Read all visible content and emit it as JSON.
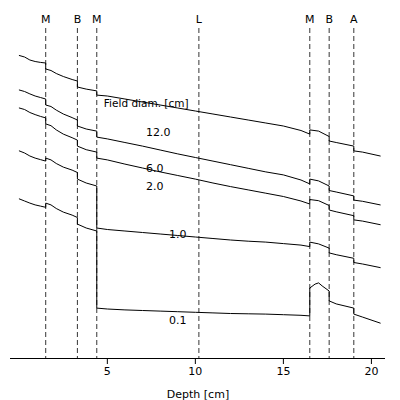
{
  "chart_data": {
    "type": "line",
    "xlabel": "Depth [cm]",
    "xlim": [
      -0.5,
      20.8
    ],
    "ylim": [
      -0.02,
      1.08
    ],
    "xticks": [
      5,
      10,
      15,
      20
    ],
    "yticks": [],
    "tick_labels": "x",
    "grid": false,
    "color": "#000000",
    "vlines": [
      {
        "x": 1.5,
        "label": "M"
      },
      {
        "x": 3.3,
        "label": "B"
      },
      {
        "x": 4.4,
        "label": "M"
      },
      {
        "x": 10.2,
        "label": "L"
      },
      {
        "x": 16.5,
        "label": "M"
      },
      {
        "x": 17.6,
        "label": "B"
      },
      {
        "x": 19.0,
        "label": "A"
      }
    ],
    "annotations": [
      {
        "text": "Field diam. [cm]",
        "x": 4.8,
        "y": 0.83
      }
    ],
    "series": [
      {
        "name": "12.0",
        "label_x": 7.2,
        "label_y": 0.735,
        "x": [
          0.0,
          0.3,
          0.6,
          0.9,
          1.2,
          1.5,
          1.5,
          1.8,
          2.1,
          2.5,
          3.0,
          3.3,
          3.3,
          3.8,
          4.4,
          4.4,
          5.0,
          6.0,
          7.0,
          8.0,
          9.0,
          10.0,
          11.0,
          12.0,
          13.0,
          14.0,
          15.0,
          16.0,
          16.5,
          16.5,
          17.0,
          17.6,
          17.6,
          18.0,
          19.0,
          19.0,
          19.5,
          20.5
        ],
        "values": [
          0.99,
          0.985,
          0.975,
          0.97,
          0.967,
          0.965,
          0.945,
          0.94,
          0.93,
          0.92,
          0.91,
          0.905,
          0.885,
          0.878,
          0.872,
          0.858,
          0.855,
          0.845,
          0.835,
          0.825,
          0.815,
          0.805,
          0.795,
          0.785,
          0.775,
          0.765,
          0.755,
          0.74,
          0.728,
          0.742,
          0.738,
          0.72,
          0.705,
          0.7,
          0.688,
          0.672,
          0.668,
          0.655
        ]
      },
      {
        "name": "6.0",
        "label_x": 7.2,
        "label_y": 0.615,
        "x": [
          0.0,
          0.3,
          0.6,
          0.9,
          1.2,
          1.5,
          1.5,
          1.8,
          2.1,
          2.5,
          3.0,
          3.3,
          3.3,
          3.8,
          4.4,
          4.4,
          5.0,
          6.0,
          7.0,
          8.0,
          9.0,
          10.0,
          11.0,
          12.0,
          13.0,
          14.0,
          15.0,
          16.0,
          16.5,
          16.5,
          17.0,
          17.6,
          17.6,
          18.0,
          19.0,
          19.0,
          19.5,
          20.5
        ],
        "values": [
          0.875,
          0.87,
          0.862,
          0.855,
          0.85,
          0.845,
          0.825,
          0.82,
          0.808,
          0.795,
          0.783,
          0.775,
          0.755,
          0.745,
          0.738,
          0.718,
          0.712,
          0.7,
          0.688,
          0.675,
          0.662,
          0.65,
          0.638,
          0.626,
          0.614,
          0.602,
          0.592,
          0.575,
          0.562,
          0.578,
          0.572,
          0.555,
          0.54,
          0.535,
          0.522,
          0.508,
          0.504,
          0.492
        ]
      },
      {
        "name": "2.0",
        "label_x": 7.2,
        "label_y": 0.552,
        "x": [
          0.0,
          0.3,
          0.6,
          0.9,
          1.2,
          1.5,
          1.5,
          1.8,
          2.1,
          2.5,
          3.0,
          3.3,
          3.3,
          3.8,
          4.4,
          4.4,
          5.0,
          6.0,
          7.0,
          8.0,
          9.0,
          10.0,
          11.0,
          12.0,
          13.0,
          14.0,
          15.0,
          16.0,
          16.5,
          16.5,
          17.0,
          17.6,
          17.6,
          18.0,
          19.0,
          19.0,
          19.5,
          20.5
        ],
        "values": [
          0.815,
          0.81,
          0.8,
          0.793,
          0.787,
          0.782,
          0.762,
          0.756,
          0.742,
          0.728,
          0.716,
          0.708,
          0.688,
          0.676,
          0.668,
          0.648,
          0.642,
          0.628,
          0.615,
          0.602,
          0.59,
          0.578,
          0.565,
          0.553,
          0.542,
          0.531,
          0.52,
          0.505,
          0.495,
          0.51,
          0.506,
          0.49,
          0.475,
          0.469,
          0.456,
          0.442,
          0.438,
          0.426
        ]
      },
      {
        "name": "1.0",
        "label_x": 8.5,
        "label_y": 0.395,
        "x": [
          0.0,
          0.3,
          0.6,
          0.9,
          1.2,
          1.5,
          1.5,
          1.8,
          2.1,
          2.5,
          3.0,
          3.3,
          3.3,
          3.8,
          4.4,
          4.4,
          5.0,
          6.0,
          7.0,
          8.0,
          9.0,
          10.0,
          11.0,
          12.0,
          13.0,
          14.0,
          15.0,
          16.0,
          16.5,
          16.5,
          17.0,
          17.6,
          17.6,
          18.0,
          19.0,
          19.0,
          19.5,
          20.5
        ],
        "values": [
          0.672,
          0.665,
          0.655,
          0.648,
          0.643,
          0.638,
          0.648,
          0.642,
          0.63,
          0.618,
          0.608,
          0.6,
          0.578,
          0.565,
          0.555,
          0.415,
          0.41,
          0.405,
          0.4,
          0.395,
          0.39,
          0.385,
          0.38,
          0.375,
          0.371,
          0.368,
          0.363,
          0.358,
          0.353,
          0.368,
          0.362,
          0.348,
          0.332,
          0.326,
          0.314,
          0.3,
          0.295,
          0.283
        ]
      },
      {
        "name": "0.1",
        "label_x": 8.5,
        "label_y": 0.108,
        "x": [
          0.0,
          0.3,
          0.6,
          0.9,
          1.2,
          1.5,
          1.5,
          1.8,
          2.1,
          2.5,
          3.0,
          3.3,
          3.3,
          3.8,
          4.4,
          4.4,
          5.0,
          6.0,
          7.0,
          8.0,
          9.0,
          10.0,
          11.0,
          12.0,
          13.0,
          14.0,
          15.0,
          16.0,
          16.5,
          16.5,
          16.8,
          17.0,
          17.2,
          17.6,
          17.6,
          18.0,
          19.0,
          19.0,
          19.5,
          20.5
        ],
        "values": [
          0.512,
          0.505,
          0.498,
          0.492,
          0.488,
          0.484,
          0.498,
          0.492,
          0.48,
          0.468,
          0.458,
          0.45,
          0.428,
          0.415,
          0.405,
          0.148,
          0.145,
          0.142,
          0.14,
          0.138,
          0.136,
          0.134,
          0.132,
          0.13,
          0.129,
          0.128,
          0.126,
          0.124,
          0.122,
          0.215,
          0.228,
          0.232,
          0.222,
          0.205,
          0.172,
          0.162,
          0.148,
          0.128,
          0.118,
          0.098
        ]
      }
    ]
  }
}
